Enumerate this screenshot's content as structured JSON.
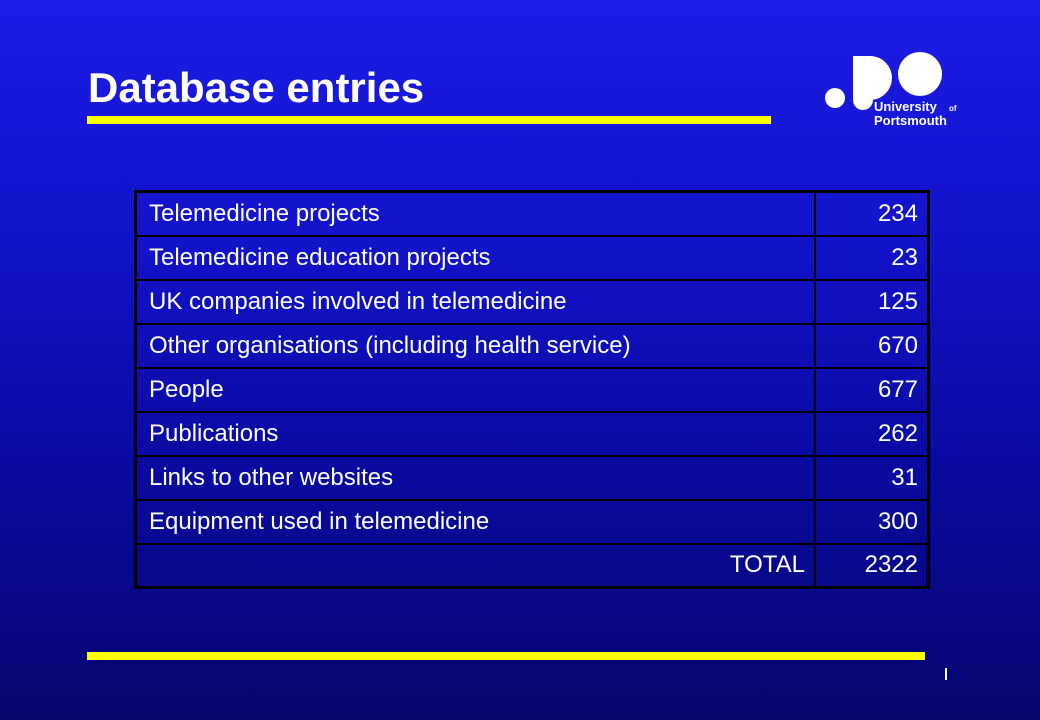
{
  "slide": {
    "title": "Database entries"
  },
  "logo": {
    "text_line1": "University",
    "text_line1_suffix": "of",
    "text_line2": "Portsmouth"
  },
  "table": {
    "rows": [
      {
        "label": "Telemedicine projects",
        "value": "234"
      },
      {
        "label": "Telemedicine education projects",
        "value": "23"
      },
      {
        "label": "UK companies involved in telemedicine",
        "value": "125"
      },
      {
        "label": "Other organisations (including health service)",
        "value": "670"
      },
      {
        "label": "People",
        "value": "677"
      },
      {
        "label": "Publications",
        "value": "262"
      },
      {
        "label": "Links to other websites",
        "value": "31"
      },
      {
        "label": "Equipment used in telemedicine",
        "value": "300"
      }
    ],
    "total": {
      "label": "TOTAL",
      "value": "2322"
    }
  },
  "colors": {
    "background": "#1212c8",
    "accent_rule": "#ffff00",
    "text": "#ffffff",
    "table_border": "#000000"
  }
}
